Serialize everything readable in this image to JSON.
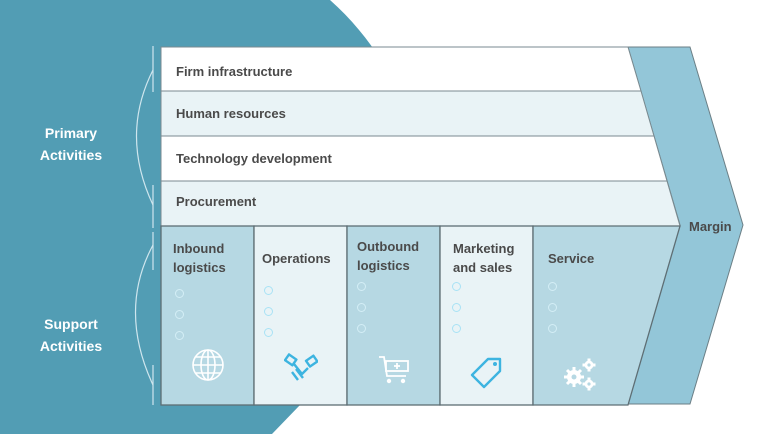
{
  "side_labels": {
    "primary": "Primary Activities",
    "support": "Support Activities"
  },
  "support_rows": [
    {
      "label": "Firm infrastructure"
    },
    {
      "label": "Human resources"
    },
    {
      "label": "Technology development"
    },
    {
      "label": "Procurement"
    }
  ],
  "primary_columns": [
    {
      "label": "Inbound logistics",
      "icon": "globe-icon"
    },
    {
      "label": "Operations",
      "icon": "handshake-icon"
    },
    {
      "label": "Outbound logistics",
      "icon": "shopping-cart-icon"
    },
    {
      "label": "Marketing and sales",
      "icon": "price-tag-icon"
    },
    {
      "label": "Service",
      "icon": "gears-icon"
    }
  ],
  "margin": {
    "label": "Margin"
  },
  "colors": {
    "teal": "#529db4",
    "margin": "#93c6d8",
    "column_dark": "#b6d8e3",
    "column_light": "#e9f3f6",
    "icon_blue": "#3db4e0"
  }
}
